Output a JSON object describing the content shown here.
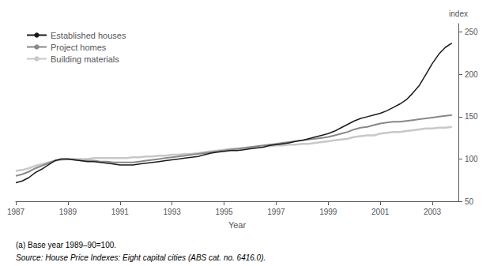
{
  "chart_data": {
    "type": "line",
    "xlabel": "Year",
    "ylabel": "index",
    "xlim": [
      1987,
      2004
    ],
    "xticks": [
      1987,
      1989,
      1991,
      1993,
      1995,
      1997,
      1999,
      2001,
      2003
    ],
    "ylim": [
      50,
      260
    ],
    "yticks": [
      50,
      100,
      150,
      200,
      250
    ],
    "grid": false,
    "legend": "upper left",
    "annotations": [
      "(a) Base year 1989–90=100.",
      "Source: House Price Indexes: Eight capital cities (ABS cat. no. 6416.0)."
    ],
    "x": [
      1987.0,
      1987.25,
      1987.5,
      1987.75,
      1988.0,
      1988.25,
      1988.5,
      1988.75,
      1989.0,
      1989.25,
      1989.5,
      1989.75,
      1990.0,
      1990.25,
      1990.5,
      1990.75,
      1991.0,
      1991.25,
      1991.5,
      1991.75,
      1992.0,
      1992.25,
      1992.5,
      1992.75,
      1993.0,
      1993.25,
      1993.5,
      1993.75,
      1994.0,
      1994.25,
      1994.5,
      1994.75,
      1995.0,
      1995.25,
      1995.5,
      1995.75,
      1996.0,
      1996.25,
      1996.5,
      1996.75,
      1997.0,
      1997.25,
      1997.5,
      1997.75,
      1998.0,
      1998.25,
      1998.5,
      1998.75,
      1999.0,
      1999.25,
      1999.5,
      1999.75,
      2000.0,
      2000.25,
      2000.5,
      2000.75,
      2001.0,
      2001.25,
      2001.5,
      2001.75,
      2002.0,
      2002.25,
      2002.5,
      2002.75,
      2003.0,
      2003.25,
      2003.5,
      2003.75
    ],
    "series": [
      {
        "name": "Established houses",
        "color": "#1a1a1a",
        "values": [
          72,
          74,
          78,
          84,
          88,
          93,
          98,
          100,
          100,
          99,
          98,
          97,
          97,
          96,
          95,
          94,
          93,
          93,
          93,
          94,
          95,
          96,
          97,
          98,
          99,
          100,
          101,
          102,
          103,
          105,
          107,
          108,
          109,
          110,
          110,
          111,
          112,
          113,
          114,
          116,
          117,
          118,
          119,
          121,
          122,
          124,
          126,
          128,
          130,
          133,
          137,
          141,
          145,
          148,
          150,
          152,
          154,
          157,
          161,
          165,
          170,
          178,
          187,
          200,
          213,
          224,
          232,
          237
        ]
      },
      {
        "name": "Project homes",
        "color": "#888888",
        "values": [
          80,
          82,
          85,
          89,
          92,
          95,
          98,
          100,
          100,
          99,
          98,
          98,
          98,
          97,
          97,
          96,
          96,
          96,
          96,
          97,
          98,
          99,
          100,
          101,
          102,
          103,
          104,
          105,
          106,
          107,
          108,
          109,
          110,
          111,
          112,
          113,
          114,
          115,
          116,
          117,
          118,
          119,
          120,
          121,
          122,
          123,
          124,
          125,
          126,
          128,
          130,
          132,
          135,
          137,
          138,
          140,
          142,
          143,
          144,
          144,
          145,
          146,
          147,
          148,
          149,
          150,
          151,
          152
        ]
      },
      {
        "name": "Building materials",
        "color": "#c8c8c8",
        "values": [
          86,
          87,
          89,
          92,
          94,
          96,
          98,
          99,
          100,
          100,
          100,
          100,
          101,
          101,
          101,
          101,
          101,
          101,
          102,
          102,
          103,
          103,
          104,
          104,
          105,
          105,
          106,
          106,
          107,
          108,
          109,
          110,
          111,
          112,
          112,
          113,
          114,
          114,
          115,
          115,
          116,
          116,
          117,
          117,
          118,
          118,
          119,
          120,
          121,
          122,
          123,
          124,
          126,
          127,
          128,
          128,
          130,
          131,
          132,
          132,
          133,
          134,
          135,
          136,
          136,
          137,
          137,
          138
        ]
      }
    ]
  }
}
